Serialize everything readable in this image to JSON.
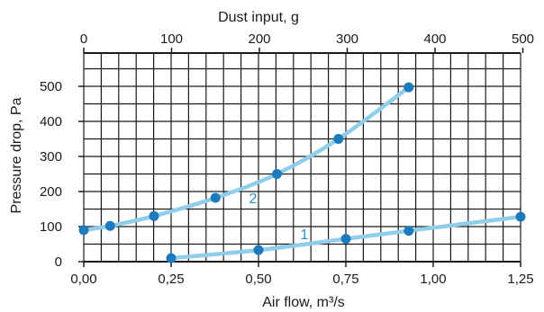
{
  "chart_data": {
    "type": "line",
    "x_title": "Air flow, m³/s",
    "x2_title": "Dust input, g",
    "y_title": "Pressure drop, Pa",
    "x_ticks": [
      "0,00",
      "0,25",
      "0,50",
      "0,75",
      "1,00",
      "1,25"
    ],
    "x_tick_values": [
      0,
      0.25,
      0.5,
      0.75,
      1.0,
      1.25
    ],
    "x2_ticks": [
      "0",
      "100",
      "200",
      "300",
      "400",
      "500"
    ],
    "x2_tick_values": [
      0,
      100,
      200,
      300,
      400,
      500
    ],
    "y_ticks": [
      "0",
      "100",
      "200",
      "300",
      "400",
      "500"
    ],
    "y_tick_values": [
      0,
      100,
      200,
      300,
      400,
      500
    ],
    "xlim": [
      0,
      1.25
    ],
    "x2lim": [
      0,
      500
    ],
    "ylim": [
      0,
      500
    ],
    "grid": true,
    "colors": {
      "line": "#8fcdea",
      "marker": "#1d7bbd",
      "label": "#2b8fcc",
      "grid": "#1a1a1a"
    },
    "series": [
      {
        "name": "1",
        "x_axis": "Air flow, m³/s",
        "x": [
          0.25,
          0.5,
          0.75,
          0.93,
          1.25
        ],
        "y": [
          10,
          33,
          65,
          88,
          128
        ]
      },
      {
        "name": "2",
        "x_axis": "Dust input, g",
        "x": [
          0,
          30,
          80,
          150,
          220,
          290,
          370
        ],
        "y": [
          90,
          102,
          130,
          182,
          250,
          350,
          497
        ]
      }
    ]
  }
}
